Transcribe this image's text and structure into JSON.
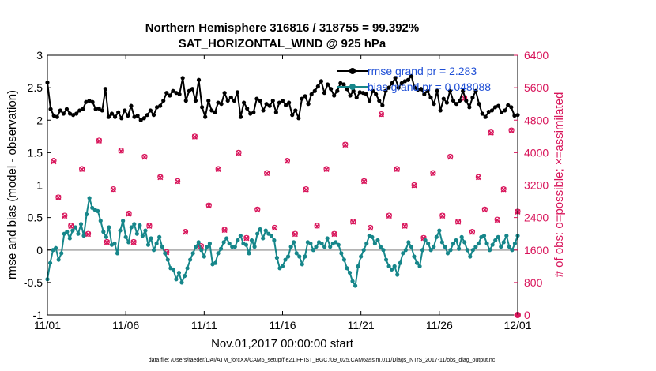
{
  "chart_data": {
    "type": "line",
    "title": "Northern Hemisphere 316816 / 318755 = 99.392%",
    "subtitle": "SAT_HORIZONTAL_WIND @ 925 hPa",
    "xlabel": "Nov.01,2017 00:00:00 start",
    "ylabel_left": "rmse and bias (model - observation)",
    "ylabel_right": "# of obs: o=possible; ×=assimilated",
    "footnote": "data file: /Users/raeder/DAI/ATM_forcXX/CAM6_setup/f.e21.FHIST_BGC.f09_025.CAM6assim.011/Diags_NTrS_2017-11/obs_diag_output.nc",
    "x_ticks": [
      1,
      6,
      11,
      16,
      21,
      26,
      31
    ],
    "x_tick_labels": [
      "11/01",
      "11/06",
      "11/11",
      "11/16",
      "11/21",
      "11/26",
      "12/01"
    ],
    "xlim": [
      1,
      31
    ],
    "ylim_left": [
      -1,
      3
    ],
    "ylim_right": [
      0,
      6400
    ],
    "yticks_left": [
      "-1",
      "-0.5",
      "0",
      "0.5",
      "1",
      "1.5",
      "2",
      "2.5",
      "3"
    ],
    "yticks_right": [
      "0",
      "800",
      "1600",
      "2400",
      "3200",
      "4000",
      "4800",
      "5600",
      "6400"
    ],
    "legend_location": "top-right",
    "colors": {
      "rmse": "#000000",
      "bias": "#16868a",
      "obs": "#d8145a",
      "zero_line": "#b4b4b4"
    },
    "series": [
      {
        "name": "rmse",
        "legend": "rmse grand pr = 2.283",
        "values": [
          2.58,
          2.17,
          2.07,
          2.05,
          2.15,
          2.1,
          2.17,
          2.1,
          2.08,
          2.1,
          2.15,
          2.17,
          2.28,
          2.3,
          2.28,
          2.17,
          2.18,
          2.15,
          2.48,
          2.05,
          2.1,
          2.05,
          2.12,
          2.03,
          2.15,
          2.07,
          2.22,
          2.05,
          2.07,
          2.0,
          2.03,
          2.08,
          2.15,
          2.08,
          2.2,
          2.22,
          2.3,
          2.42,
          2.38,
          2.45,
          2.42,
          2.4,
          2.65,
          2.3,
          2.45,
          2.48,
          2.3,
          2.62,
          2.2,
          2.05,
          2.3,
          2.15,
          2.12,
          2.27,
          2.25,
          2.42,
          2.3,
          2.35,
          2.3,
          2.43,
          2.05,
          2.27,
          2.18,
          2.1,
          2.12,
          2.33,
          2.3,
          2.15,
          2.25,
          2.22,
          2.3,
          2.12,
          2.27,
          2.3,
          2.23,
          2.27,
          2.08,
          2.15,
          2.03,
          2.33,
          2.37,
          2.25,
          2.4,
          2.45,
          2.52,
          2.6,
          2.42,
          2.55,
          2.48,
          2.38,
          2.45,
          2.57,
          2.55,
          2.48,
          2.38,
          2.45,
          2.35,
          2.43,
          2.42,
          2.4,
          2.3,
          2.45,
          2.4,
          2.3,
          2.23,
          2.45,
          2.5,
          2.57,
          2.65,
          2.5,
          2.57,
          2.6,
          2.62,
          2.68,
          2.5,
          2.47,
          2.48,
          2.4,
          2.45,
          2.35,
          2.25,
          2.45,
          2.15,
          2.33,
          2.27,
          2.45,
          2.3,
          2.25,
          2.3,
          2.45,
          2.3,
          2.2,
          2.35,
          2.45,
          2.25,
          2.1,
          2.05,
          2.13,
          2.15,
          2.2,
          2.22,
          2.12,
          2.15,
          2.23,
          2.2,
          2.07,
          2.08
        ]
      },
      {
        "name": "bias",
        "legend": "bias grand pr = 0.048088",
        "values": [
          -0.45,
          -0.2,
          0.0,
          0.03,
          -0.15,
          -0.05,
          0.25,
          0.28,
          0.18,
          0.3,
          0.35,
          0.25,
          0.4,
          0.22,
          0.55,
          0.8,
          0.65,
          0.62,
          0.6,
          0.45,
          0.28,
          0.2,
          0.35,
          0.08,
          0.1,
          -0.05,
          0.3,
          0.45,
          0.2,
          0.12,
          0.35,
          0.4,
          0.25,
          0.38,
          0.22,
          0.3,
          0.08,
          0.18,
          0.0,
          0.1,
          0.2,
          0.05,
          -0.05,
          -0.15,
          -0.28,
          -0.3,
          -0.45,
          -0.35,
          -0.5,
          -0.4,
          -0.28,
          -0.15,
          -0.05,
          0.05,
          0.12,
          0.0,
          -0.1,
          0.05,
          0.1,
          -0.22,
          -0.2,
          -0.05,
          0.02,
          0.12,
          0.18,
          0.1,
          0.05,
          0.05,
          0.15,
          0.22,
          0.1,
          0.08,
          -0.05,
          0.15,
          0.05,
          0.25,
          0.32,
          0.18,
          0.3,
          0.25,
          0.22,
          0.15,
          -0.12,
          -0.28,
          -0.25,
          -0.15,
          -0.1,
          0.05,
          0.12,
          -0.05,
          -0.1,
          -0.22,
          -0.1,
          0.12,
          0.1,
          0.0,
          0.05,
          0.12,
          0.1,
          0.05,
          0.18,
          0.05,
          0.1,
          0.12,
          0.08,
          -0.05,
          -0.15,
          -0.28,
          -0.35,
          -0.48,
          -0.55,
          -0.25,
          -0.1,
          0.0,
          0.1,
          0.22,
          0.2,
          0.1,
          0.15,
          0.05,
          0.0,
          -0.15,
          -0.25,
          -0.3,
          -0.25,
          -0.38,
          -0.2,
          -0.05,
          0.0,
          0.12,
          0.05,
          -0.1,
          -0.2,
          -0.25,
          0.0,
          0.15,
          0.1,
          0.0,
          0.05,
          0.2,
          0.3,
          0.12,
          0.05,
          -0.05,
          0.0,
          0.1,
          0.15,
          0.02,
          0.2,
          0.12,
          0.0,
          -0.1,
          0.0,
          0.05,
          0.1,
          0.2,
          0.22,
          0.1,
          0.0,
          0.08,
          0.15,
          0.2,
          0.05,
          0.12,
          0.22,
          0.05,
          0.0,
          0.1,
          0.22
        ]
      },
      {
        "name": "obs_possible",
        "axis": "right",
        "points": [
          [
            1.4,
            3800
          ],
          [
            1.7,
            2900
          ],
          [
            2.1,
            2450
          ],
          [
            2.5,
            2200
          ],
          [
            3.2,
            3600
          ],
          [
            3.6,
            2000
          ],
          [
            4.3,
            4300
          ],
          [
            4.8,
            1800
          ],
          [
            5.2,
            3100
          ],
          [
            5.7,
            4050
          ],
          [
            6.2,
            2500
          ],
          [
            6.5,
            1800
          ],
          [
            7.2,
            3900
          ],
          [
            7.5,
            2200
          ],
          [
            8.2,
            3400
          ],
          [
            8.6,
            1550
          ],
          [
            9.3,
            3300
          ],
          [
            9.8,
            2050
          ],
          [
            10.4,
            4400
          ],
          [
            10.8,
            1700
          ],
          [
            11.3,
            2700
          ],
          [
            11.9,
            3600
          ],
          [
            12.3,
            2100
          ],
          [
            13.2,
            4000
          ],
          [
            13.7,
            1900
          ],
          [
            14.4,
            2600
          ],
          [
            15.0,
            3500
          ],
          [
            15.5,
            2150
          ],
          [
            16.3,
            3800
          ],
          [
            16.8,
            2000
          ],
          [
            17.5,
            3100
          ],
          [
            18.2,
            2200
          ],
          [
            18.8,
            3600
          ],
          [
            19.3,
            2000
          ],
          [
            20.0,
            4200
          ],
          [
            20.5,
            2300
          ],
          [
            21.2,
            3300
          ],
          [
            21.6,
            2150
          ],
          [
            22.3,
            4950
          ],
          [
            22.8,
            2450
          ],
          [
            23.3,
            3600
          ],
          [
            23.8,
            2200
          ],
          [
            24.4,
            3200
          ],
          [
            25.0,
            1900
          ],
          [
            25.6,
            3500
          ],
          [
            26.2,
            2450
          ],
          [
            26.7,
            3900
          ],
          [
            27.2,
            2300
          ],
          [
            27.6,
            5350
          ],
          [
            28.1,
            2050
          ],
          [
            28.5,
            3400
          ],
          [
            28.9,
            2600
          ],
          [
            29.3,
            4500
          ],
          [
            29.7,
            2350
          ],
          [
            30.1,
            3100
          ],
          [
            30.6,
            4550
          ],
          [
            31.0,
            2550
          ]
        ]
      },
      {
        "name": "obs_assimilated",
        "axis": "right",
        "points": [
          [
            1.4,
            3780
          ],
          [
            1.7,
            2890
          ],
          [
            2.1,
            2440
          ],
          [
            2.5,
            2190
          ],
          [
            3.2,
            3590
          ],
          [
            3.6,
            1990
          ],
          [
            4.3,
            4290
          ],
          [
            4.8,
            1790
          ],
          [
            5.2,
            3090
          ],
          [
            5.7,
            4040
          ],
          [
            6.2,
            2490
          ],
          [
            6.5,
            1790
          ],
          [
            7.2,
            3890
          ],
          [
            7.5,
            2190
          ],
          [
            8.2,
            3390
          ],
          [
            8.6,
            1540
          ],
          [
            9.3,
            3290
          ],
          [
            9.8,
            2040
          ],
          [
            10.4,
            4390
          ],
          [
            10.8,
            1690
          ],
          [
            11.3,
            2690
          ],
          [
            11.9,
            3590
          ],
          [
            12.3,
            2090
          ],
          [
            13.2,
            3990
          ],
          [
            13.7,
            1890
          ],
          [
            14.4,
            2590
          ],
          [
            15.0,
            3490
          ],
          [
            15.5,
            2140
          ],
          [
            16.3,
            3790
          ],
          [
            16.8,
            1990
          ],
          [
            17.5,
            3090
          ],
          [
            18.2,
            2190
          ],
          [
            18.8,
            3590
          ],
          [
            19.3,
            1990
          ],
          [
            20.0,
            4190
          ],
          [
            20.5,
            2290
          ],
          [
            21.2,
            3290
          ],
          [
            21.6,
            2140
          ],
          [
            22.3,
            4940
          ],
          [
            22.8,
            2440
          ],
          [
            23.3,
            3590
          ],
          [
            23.8,
            2190
          ],
          [
            24.4,
            3190
          ],
          [
            25.0,
            1890
          ],
          [
            25.6,
            3490
          ],
          [
            26.2,
            2440
          ],
          [
            26.7,
            3890
          ],
          [
            27.2,
            2290
          ],
          [
            27.6,
            5340
          ],
          [
            28.1,
            2040
          ],
          [
            28.5,
            3390
          ],
          [
            28.9,
            2590
          ],
          [
            29.3,
            4490
          ],
          [
            29.7,
            2340
          ],
          [
            30.1,
            3090
          ],
          [
            30.6,
            4540
          ],
          [
            31.0,
            2540
          ]
        ]
      }
    ]
  }
}
